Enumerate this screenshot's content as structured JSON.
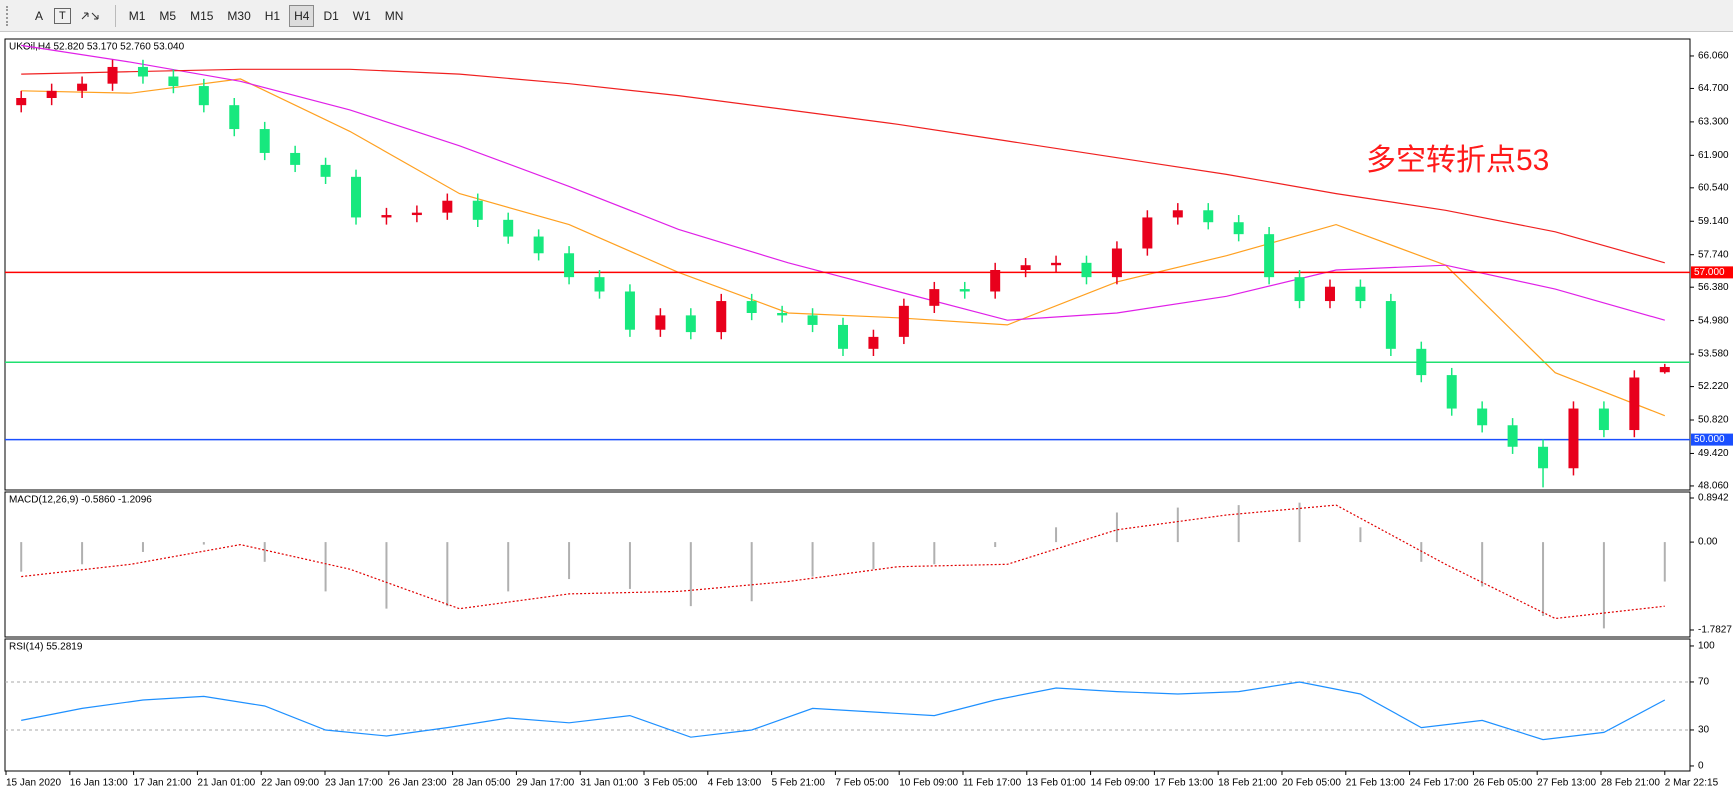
{
  "toolbar": {
    "icons": [
      "A",
      "T"
    ],
    "timeframes": [
      "M1",
      "M5",
      "M15",
      "M30",
      "H1",
      "H4",
      "D1",
      "W1",
      "MN"
    ],
    "active": "H4"
  },
  "chart_data": [
    {
      "type": "candlestick",
      "title": "UKOil,H4 52.820 53.170 52.760 53.040",
      "up_color": "#e8001c",
      "down_color": "#17e87e",
      "open": [
        64.0,
        64.3,
        64.6,
        64.9,
        65.6,
        65.2,
        64.8,
        64.0,
        63.0,
        62.0,
        61.5,
        61.0,
        59.3,
        59.4,
        59.5,
        60.0,
        59.2,
        58.5,
        57.8,
        56.8,
        56.2,
        54.6,
        55.2,
        54.5,
        55.8,
        55.3,
        55.2,
        54.8,
        53.8,
        54.3,
        55.6,
        56.3,
        56.2,
        57.1,
        57.3,
        57.4,
        56.8,
        58.0,
        59.3,
        59.6,
        59.1,
        58.6,
        56.8,
        55.8,
        56.4,
        55.8,
        53.8,
        52.7,
        51.3,
        50.6,
        49.7,
        48.8,
        51.3,
        50.4,
        52.82
      ],
      "high": [
        64.6,
        64.9,
        65.2,
        65.9,
        65.9,
        65.5,
        65.1,
        64.3,
        63.3,
        62.3,
        61.8,
        61.3,
        59.7,
        59.8,
        60.3,
        60.3,
        59.5,
        58.8,
        58.1,
        57.1,
        56.5,
        55.5,
        55.5,
        56.1,
        56.1,
        55.6,
        55.5,
        55.1,
        54.6,
        55.9,
        56.6,
        56.6,
        57.4,
        57.6,
        57.7,
        57.7,
        58.3,
        59.6,
        59.9,
        59.9,
        59.4,
        58.9,
        57.1,
        56.7,
        56.7,
        56.1,
        54.1,
        53.0,
        51.6,
        50.9,
        50.0,
        51.6,
        51.6,
        52.9,
        53.17
      ],
      "low": [
        63.7,
        64.0,
        64.3,
        64.6,
        64.9,
        64.5,
        63.7,
        62.7,
        61.7,
        61.2,
        60.7,
        59.0,
        59.0,
        59.1,
        59.2,
        58.9,
        58.2,
        57.5,
        56.5,
        55.9,
        54.3,
        54.3,
        54.2,
        54.2,
        55.0,
        54.9,
        54.5,
        53.5,
        53.5,
        54.0,
        55.3,
        55.9,
        55.9,
        56.8,
        57.0,
        56.5,
        56.5,
        57.7,
        59.0,
        58.8,
        58.3,
        56.5,
        55.5,
        55.5,
        55.5,
        53.5,
        52.4,
        51.0,
        50.3,
        49.4,
        48.0,
        48.5,
        50.1,
        50.1,
        52.76
      ],
      "close": [
        64.3,
        64.6,
        64.9,
        65.6,
        65.2,
        64.8,
        64.0,
        63.0,
        62.0,
        61.5,
        61.0,
        59.3,
        59.4,
        59.5,
        60.0,
        59.2,
        58.5,
        57.8,
        56.8,
        56.2,
        54.6,
        55.2,
        54.5,
        55.8,
        55.3,
        55.2,
        54.8,
        53.8,
        54.3,
        55.6,
        56.3,
        56.2,
        57.1,
        57.3,
        57.4,
        56.8,
        58.0,
        59.3,
        59.6,
        59.1,
        58.6,
        56.8,
        55.8,
        56.4,
        55.8,
        53.8,
        52.7,
        51.3,
        50.6,
        49.7,
        48.8,
        51.3,
        50.4,
        52.6,
        53.04
      ],
      "series": [
        {
          "color": "#ffa020",
          "values": [
            64.6,
            64.5,
            65.1,
            62.9,
            60.3,
            59.0,
            57.0,
            55.3,
            55.1,
            54.8,
            56.6,
            57.7,
            59.0,
            57.3,
            52.8,
            51.0
          ]
        },
        {
          "color": "#e020e8",
          "values": [
            66.5,
            65.8,
            65.0,
            63.8,
            62.3,
            60.6,
            58.8,
            57.4,
            56.2,
            55.0,
            55.3,
            56.0,
            57.1,
            57.3,
            56.3,
            55.0
          ]
        },
        {
          "color": "#f02020",
          "values": [
            65.3,
            65.4,
            65.5,
            65.5,
            65.3,
            64.9,
            64.4,
            63.8,
            63.2,
            62.5,
            61.8,
            61.1,
            60.3,
            59.6,
            58.7,
            57.4
          ]
        }
      ],
      "levels": [
        {
          "value": 57.0,
          "label": "57.000",
          "color": "#ff0000"
        },
        {
          "value": 53.24,
          "color": "#20e070"
        },
        {
          "value": 50.0,
          "label": "50.000",
          "color": "#1a4fff"
        }
      ],
      "annotation": {
        "text": "多空转折点53",
        "color": "#ff1a1a"
      },
      "ylim": [
        47.89,
        66.77
      ],
      "yticks": [
        {
          "value": 66.06,
          "label": "66.060"
        },
        {
          "value": 64.7,
          "label": "64.700"
        },
        {
          "value": 63.3,
          "label": "63.300"
        },
        {
          "value": 61.9,
          "label": "61.900"
        },
        {
          "value": 60.54,
          "label": "60.540"
        },
        {
          "value": 59.14,
          "label": "59.140"
        },
        {
          "value": 57.74,
          "label": "57.740"
        },
        {
          "value": 56.38,
          "label": "56.380"
        },
        {
          "value": 54.98,
          "label": "54.980"
        },
        {
          "value": 53.58,
          "label": "53.580"
        },
        {
          "value": 52.22,
          "label": "52.220"
        },
        {
          "value": 50.82,
          "label": "50.820"
        },
        {
          "value": 49.42,
          "label": "49.420"
        },
        {
          "value": 48.06,
          "label": "48.060"
        }
      ]
    },
    {
      "type": "macd",
      "title": "MACD(12,26,9) -0.5860 -1.2096",
      "histogram": [
        -0.6,
        -0.45,
        -0.2,
        -0.05,
        -0.4,
        -1.0,
        -1.35,
        -1.3,
        -1.0,
        -0.75,
        -0.95,
        -1.3,
        -1.2,
        -0.7,
        -0.55,
        -0.45,
        -0.1,
        0.3,
        0.6,
        0.7,
        0.75,
        0.8,
        0.3,
        -0.4,
        -0.9,
        -1.5,
        -1.75,
        -0.8
      ],
      "histogram_color": "#b0b0b0",
      "signal": [
        -0.7,
        -0.45,
        -0.05,
        -0.55,
        -1.35,
        -1.05,
        -1.0,
        -0.8,
        -0.5,
        -0.45,
        0.25,
        0.55,
        0.75,
        -0.45,
        -1.55,
        -1.3
      ],
      "signal_color": "#e00000",
      "ylim": [
        -1.925,
        1.016
      ],
      "yticks": [
        0.8942,
        {
          "value": 0,
          "label": "0.00"
        },
        -1.7827
      ]
    },
    {
      "type": "rsi",
      "title": "RSI(14) 55.2819",
      "color": "#1e90ff",
      "values": [
        38,
        48,
        55,
        58,
        50,
        30,
        25,
        32,
        40,
        36,
        42,
        24,
        30,
        48,
        45,
        42,
        55,
        65,
        62,
        60,
        62,
        70,
        60,
        32,
        38,
        22,
        28,
        55
      ],
      "ylim": [
        -4.2,
        105.8
      ],
      "yticks": [
        100,
        70,
        30,
        0
      ]
    }
  ],
  "time_labels": [
    "15 Jan 2020",
    "16 Jan 13:00",
    "17 Jan 21:00",
    "21 Jan 01:00",
    "22 Jan 09:00",
    "23 Jan 17:00",
    "26 Jan 23:00",
    "28 Jan 05:00",
    "29 Jan 17:00",
    "31 Jan 01:00",
    "3 Feb 05:00",
    "4 Feb 13:00",
    "5 Feb 21:00",
    "7 Feb 05:00",
    "10 Feb 09:00",
    "11 Feb 17:00",
    "13 Feb 01:00",
    "14 Feb 09:00",
    "17 Feb 13:00",
    "18 Feb 21:00",
    "20 Feb 05:00",
    "21 Feb 13:00",
    "24 Feb 17:00",
    "26 Feb 05:00",
    "27 Feb 13:00",
    "28 Feb 21:00",
    "2 Mar 22:15"
  ]
}
